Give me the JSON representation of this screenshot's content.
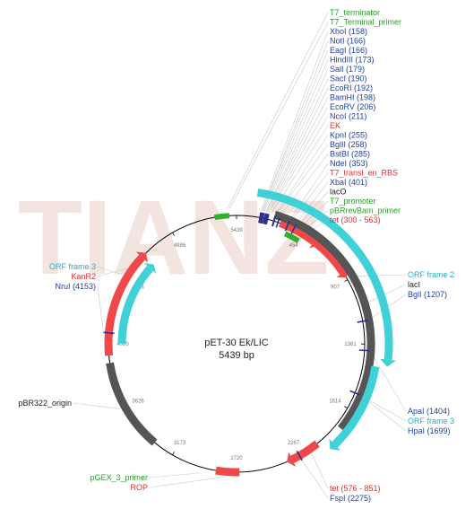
{
  "watermark": "TIANZ",
  "plasmid": {
    "name": "pET-30 Ek/LIC",
    "size": "5439 bp",
    "length": 5439
  },
  "colors": {
    "backbone": "#000000",
    "gene": "#f04848",
    "orf": "#40d0d8",
    "grey": "#555555",
    "green": "#30b030",
    "site": "#303090",
    "label_blue": "#2040a0",
    "label_red": "#e03030",
    "label_green": "#28a028",
    "label_cyan": "#20b0c8",
    "label_black": "#222222"
  },
  "ticks": [
    {
      "label": "5439",
      "bp": 0
    },
    {
      "label": "454",
      "bp": 454
    },
    {
      "label": "907",
      "bp": 907
    },
    {
      "label": "1361",
      "bp": 1361
    },
    {
      "label": "1814",
      "bp": 1814
    },
    {
      "label": "2267",
      "bp": 2267
    },
    {
      "label": "2720",
      "bp": 2720
    },
    {
      "label": "3173",
      "bp": 3173
    },
    {
      "label": "3626",
      "bp": 3626
    },
    {
      "label": "4080",
      "bp": 4080
    },
    {
      "label": "4533",
      "bp": 4533
    },
    {
      "label": "4986",
      "bp": 4986
    }
  ],
  "features": [
    {
      "name": "tet-300-563",
      "start": 300,
      "end": 563,
      "ring": 0,
      "color": "gene",
      "dir": 1
    },
    {
      "name": "tet-576-851",
      "start": 576,
      "end": 851,
      "ring": 0,
      "color": "gene",
      "dir": 1
    },
    {
      "name": "grey-main",
      "start": 250,
      "end": 1950,
      "ring": 1,
      "color": "grey",
      "dir": 0
    },
    {
      "name": "orf-frame-2",
      "start": 120,
      "end": 1450,
      "ring": 2,
      "color": "orf",
      "dir": 1
    },
    {
      "name": "orf-frame-3-right",
      "start": 1500,
      "end": 2050,
      "ring": 3,
      "color": "orf",
      "dir": 1
    },
    {
      "name": "tet-lower",
      "start": 2130,
      "end": 2330,
      "ring": 0,
      "color": "gene",
      "dir": 1
    },
    {
      "name": "rop",
      "start": 2700,
      "end": 2860,
      "ring": 0,
      "color": "gene",
      "dir": 0
    },
    {
      "name": "pbr322-origin",
      "start": 3320,
      "end": 3950,
      "ring": 1,
      "color": "grey",
      "dir": 0
    },
    {
      "name": "kanr2",
      "start": 4000,
      "end": 4720,
      "ring": 0,
      "color": "gene",
      "dir": 1
    },
    {
      "name": "orf-frame-3-left",
      "start": 4080,
      "end": 4700,
      "ring": 3,
      "color": "orf",
      "dir": 1
    },
    {
      "name": "t7-terminator",
      "start": 5290,
      "end": 5390,
      "ring": 0,
      "color": "green",
      "dir": 0
    },
    {
      "name": "pbrrevbam-primer",
      "start": 410,
      "end": 470,
      "ring": 3,
      "color": "green",
      "dir": 0
    },
    {
      "name": "t7-promoter",
      "start": 360,
      "end": 420,
      "ring": 3,
      "color": "green",
      "dir": 0
    }
  ],
  "right_labels": [
    {
      "text": "T7_terminator",
      "color": "label_green",
      "bp": 5380
    },
    {
      "text": "T7_Terminal_primer",
      "color": "label_green",
      "bp": 5395
    },
    {
      "text": "XhoI (158)",
      "color": "label_blue",
      "bp": 158
    },
    {
      "text": "NotI (166)",
      "color": "label_blue",
      "bp": 166
    },
    {
      "text": "EagI (166)",
      "color": "label_blue",
      "bp": 166
    },
    {
      "text": "HindIII (173)",
      "color": "label_blue",
      "bp": 173
    },
    {
      "text": "SalI (179)",
      "color": "label_blue",
      "bp": 179
    },
    {
      "text": "SacI (190)",
      "color": "label_blue",
      "bp": 190
    },
    {
      "text": "EcoRI (192)",
      "color": "label_blue",
      "bp": 192
    },
    {
      "text": "BamHI (198)",
      "color": "label_blue",
      "bp": 198
    },
    {
      "text": "EcoRV (206)",
      "color": "label_blue",
      "bp": 206
    },
    {
      "text": "NcoI (211)",
      "color": "label_blue",
      "bp": 211
    },
    {
      "text": "EK",
      "color": "label_red",
      "bp": 225
    },
    {
      "text": "KpnI (255)",
      "color": "label_blue",
      "bp": 255
    },
    {
      "text": "BglII (258)",
      "color": "label_blue",
      "bp": 258
    },
    {
      "text": "BstBI (285)",
      "color": "label_blue",
      "bp": 285
    },
    {
      "text": "NdeI (353)",
      "color": "label_blue",
      "bp": 353
    },
    {
      "text": "T7_transl_en_RBS",
      "color": "label_red",
      "bp": 365
    },
    {
      "text": "XbaI (401)",
      "color": "label_blue",
      "bp": 401
    },
    {
      "text": "lacO",
      "color": "label_black",
      "bp": 420
    },
    {
      "text": "T7_promoter",
      "color": "label_green",
      "bp": 440
    },
    {
      "text": "pBRrevBam_primer",
      "color": "label_green",
      "bp": 470
    },
    {
      "text": "tet (300 - 563)",
      "color": "label_red",
      "bp": 500
    }
  ],
  "side_labels": [
    {
      "text": "ORF frame 2",
      "color": "label_cyan",
      "bp": 900,
      "side": "right"
    },
    {
      "text": "lacI",
      "color": "label_black",
      "bp": 1100,
      "side": "right"
    },
    {
      "text": "BglI (1207)",
      "color": "label_blue",
      "bp": 1207,
      "side": "right"
    },
    {
      "text": "ApaI (1404)",
      "color": "label_blue",
      "bp": 1404,
      "side": "right"
    },
    {
      "text": "ORF frame 3",
      "color": "label_cyan",
      "bp": 1700,
      "side": "right"
    },
    {
      "text": "HpaI (1699)",
      "color": "label_blue",
      "bp": 1699,
      "side": "right"
    },
    {
      "text": "tet (576 - 851)",
      "color": "label_red",
      "bp": 2200,
      "side": "bottom"
    },
    {
      "text": "FspI (2275)",
      "color": "label_blue",
      "bp": 2275,
      "side": "bottom"
    },
    {
      "text": "pGEX_3_primer",
      "color": "label_green",
      "bp": 2950,
      "side": "left"
    },
    {
      "text": "ROP",
      "color": "label_red",
      "bp": 2800,
      "side": "left"
    },
    {
      "text": "pBR322_origin",
      "color": "label_black",
      "bp": 3640,
      "side": "left"
    },
    {
      "text": "ORF frame 3",
      "color": "label_cyan",
      "bp": 4550,
      "side": "left"
    },
    {
      "text": "KanR2",
      "color": "label_red",
      "bp": 4600,
      "side": "left"
    },
    {
      "text": "NruI (4153)",
      "color": "label_blue",
      "bp": 4153,
      "side": "left"
    }
  ],
  "sites": [
    158,
    166,
    173,
    179,
    190,
    192,
    198,
    206,
    211,
    255,
    258,
    285,
    353,
    401,
    1207,
    1404,
    1699,
    2275,
    4153
  ]
}
